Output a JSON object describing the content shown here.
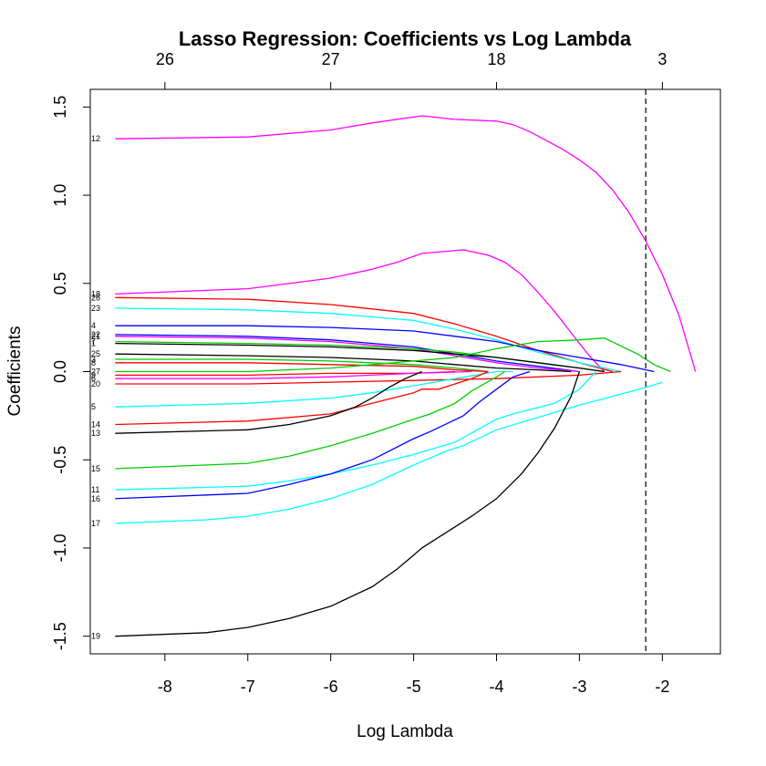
{
  "chart_data": {
    "type": "line",
    "title": "Lasso Regression: Coefficients vs Log Lambda",
    "xlabel": "Log Lambda",
    "ylabel": "Coefficients",
    "xlim": [
      -8.9,
      -1.3
    ],
    "ylim": [
      -1.6,
      1.6
    ],
    "x_ticks": [
      -8,
      -7,
      -6,
      -5,
      -4,
      -3,
      -2
    ],
    "y_ticks": [
      -1.5,
      -1.0,
      -0.5,
      0.0,
      0.5,
      1.0,
      1.5
    ],
    "y_tick_labels": [
      "-1.5",
      "-1.0",
      "-0.5",
      "0.0",
      "0.5",
      "1.0",
      "1.5"
    ],
    "top_axis": {
      "positions": [
        -8,
        -6,
        -4,
        -2
      ],
      "labels": [
        "26",
        "27",
        "18",
        "3"
      ]
    },
    "vline": -2.2,
    "grid": false,
    "series": [
      {
        "name": "12",
        "color": "#ff00ff",
        "x": [
          -8.6,
          -7,
          -6,
          -5.5,
          -4.9,
          -4.7,
          -4.5,
          -4,
          -3.8,
          -3.6,
          -3.4,
          -3.2,
          -3,
          -2.8,
          -2.6,
          -2.4,
          -2.2,
          -2,
          -1.8,
          -1.6
        ],
        "y": [
          1.32,
          1.33,
          1.37,
          1.41,
          1.45,
          1.44,
          1.43,
          1.42,
          1.4,
          1.36,
          1.31,
          1.26,
          1.2,
          1.13,
          1.03,
          0.9,
          0.74,
          0.55,
          0.32,
          0.0
        ]
      },
      {
        "name": "18",
        "color": "#ff00ff",
        "x": [
          -8.6,
          -7,
          -6,
          -5.5,
          -5.2,
          -4.9,
          -4.4,
          -4.1,
          -3.9,
          -3.7,
          -3.5,
          -3.3,
          -3.1,
          -2.9,
          -2.7
        ],
        "y": [
          0.44,
          0.47,
          0.53,
          0.58,
          0.62,
          0.67,
          0.69,
          0.66,
          0.62,
          0.55,
          0.45,
          0.34,
          0.22,
          0.1,
          0.0
        ]
      },
      {
        "name": "26",
        "color": "#ff0000",
        "x": [
          -8.6,
          -7,
          -6,
          -5,
          -4.5,
          -4,
          -3.5,
          -3,
          -2.6
        ],
        "y": [
          0.42,
          0.41,
          0.38,
          0.33,
          0.27,
          0.2,
          0.12,
          0.05,
          0.0
        ]
      },
      {
        "name": "23",
        "color": "#00ffff",
        "x": [
          -8.6,
          -7,
          -6,
          -5,
          -4.5,
          -4,
          -3.5,
          -3,
          -2.5
        ],
        "y": [
          0.36,
          0.35,
          0.33,
          0.29,
          0.24,
          0.18,
          0.11,
          0.05,
          0.0
        ]
      },
      {
        "name": "4",
        "color": "#0000ff",
        "x": [
          -8.6,
          -7,
          -6,
          -5,
          -4.5,
          -4,
          -3.5,
          -3,
          -2.5,
          -2.1
        ],
        "y": [
          0.26,
          0.26,
          0.25,
          0.23,
          0.2,
          0.17,
          0.12,
          0.08,
          0.04,
          0.0
        ]
      },
      {
        "name": "22",
        "color": "#0000ff",
        "x": [
          -8.6,
          -7,
          -6,
          -5,
          -4.5,
          -4,
          -3.5,
          -3
        ],
        "y": [
          0.21,
          0.2,
          0.18,
          0.14,
          0.1,
          0.06,
          0.03,
          0.0
        ]
      },
      {
        "name": "21",
        "color": "#ff00ff",
        "x": [
          -8.6,
          -7,
          -6,
          -5,
          -4.5,
          -4,
          -3.5,
          -3
        ],
        "y": [
          0.2,
          0.19,
          0.17,
          0.13,
          0.09,
          0.05,
          0.02,
          0.0
        ]
      },
      {
        "name": "7",
        "color": "#00cd00",
        "x": [
          -8.6,
          -7,
          -6,
          -5,
          -4.5,
          -4,
          -3.5,
          -3,
          -2.7
        ],
        "y": [
          0.17,
          0.16,
          0.15,
          0.13,
          0.11,
          0.08,
          0.05,
          0.02,
          0.0
        ]
      },
      {
        "name": "1",
        "color": "#000000",
        "x": [
          -8.6,
          -7,
          -6,
          -5,
          -4.5,
          -4,
          -3.5,
          -3,
          -2.7
        ],
        "y": [
          0.16,
          0.15,
          0.14,
          0.12,
          0.1,
          0.08,
          0.05,
          0.02,
          0.0
        ]
      },
      {
        "name": "25",
        "color": "#000000",
        "x": [
          -8.6,
          -7,
          -6,
          -5,
          -4.5,
          -4,
          -3.5,
          -3.1
        ],
        "y": [
          0.1,
          0.09,
          0.08,
          0.06,
          0.04,
          0.02,
          0.01,
          0.0
        ]
      },
      {
        "name": "3",
        "color": "#00cd00",
        "x": [
          -8.6,
          -7,
          -6,
          -5,
          -4.5,
          -4.1
        ],
        "y": [
          0.07,
          0.07,
          0.06,
          0.04,
          0.02,
          0.0
        ]
      },
      {
        "name": "8",
        "color": "#ff0000",
        "x": [
          -8.6,
          -7,
          -6,
          -5,
          -4.5,
          -4.1
        ],
        "y": [
          0.05,
          0.05,
          0.04,
          0.03,
          0.01,
          0.0
        ]
      },
      {
        "name": "27",
        "color": "#00cd00",
        "x": [
          -8.6,
          -7,
          -6,
          -5.5,
          -5,
          -4.5,
          -4,
          -3.5,
          -3,
          -2.7,
          -2.3,
          -2.1,
          -1.9
        ],
        "y": [
          0.0,
          0.0,
          0.02,
          0.04,
          0.06,
          0.08,
          0.13,
          0.17,
          0.18,
          0.19,
          0.1,
          0.04,
          0.0
        ]
      },
      {
        "name": "9",
        "color": "#ff0000",
        "x": [
          -8.6,
          -7,
          -6,
          -5,
          -4.5
        ],
        "y": [
          -0.02,
          -0.02,
          -0.01,
          -0.01,
          0.0
        ]
      },
      {
        "name": "6",
        "color": "#ff00ff",
        "x": [
          -8.6,
          -7,
          -6,
          -5,
          -4.3
        ],
        "y": [
          -0.04,
          -0.04,
          -0.03,
          -0.01,
          0.0
        ]
      },
      {
        "name": "20",
        "color": "#ff0000",
        "x": [
          -8.6,
          -7,
          -6,
          -5,
          -4,
          -3,
          -2.5
        ],
        "y": [
          -0.07,
          -0.07,
          -0.06,
          -0.05,
          -0.04,
          -0.02,
          0.0
        ]
      },
      {
        "name": "5",
        "color": "#00ffff",
        "x": [
          -8.6,
          -7,
          -6,
          -5.5,
          -5,
          -4.5,
          -4,
          -3.8
        ],
        "y": [
          -0.2,
          -0.18,
          -0.15,
          -0.12,
          -0.08,
          -0.04,
          0.0,
          0.0
        ]
      },
      {
        "name": "14",
        "color": "#ff0000",
        "x": [
          -8.6,
          -7,
          -6,
          -5.5,
          -5,
          -4.9,
          -4.7,
          -4.5,
          -4.3,
          -4.1
        ],
        "y": [
          -0.3,
          -0.28,
          -0.24,
          -0.18,
          -0.12,
          -0.1,
          -0.1,
          -0.07,
          -0.04,
          0.0
        ]
      },
      {
        "name": "13",
        "color": "#000000",
        "x": [
          -8.6,
          -7,
          -6.5,
          -6,
          -5.7,
          -5.5,
          -5.3,
          -5.1,
          -4.9
        ],
        "y": [
          -0.35,
          -0.33,
          -0.3,
          -0.25,
          -0.2,
          -0.15,
          -0.09,
          -0.04,
          0.0
        ]
      },
      {
        "name": "15",
        "color": "#00cd00",
        "x": [
          -8.6,
          -7,
          -6.5,
          -6,
          -5.5,
          -5,
          -4.8,
          -4.5,
          -4.3,
          -4,
          -3.9
        ],
        "y": [
          -0.55,
          -0.52,
          -0.48,
          -0.42,
          -0.35,
          -0.27,
          -0.24,
          -0.18,
          -0.11,
          -0.03,
          0.0
        ]
      },
      {
        "name": "11",
        "color": "#00ffff",
        "x": [
          -8.6,
          -7,
          -6.5,
          -6,
          -5.5,
          -5,
          -4.5,
          -4,
          -3.8,
          -3.3,
          -3,
          -2.8
        ],
        "y": [
          -0.67,
          -0.65,
          -0.62,
          -0.58,
          -0.53,
          -0.47,
          -0.4,
          -0.27,
          -0.24,
          -0.18,
          -0.1,
          0.0
        ]
      },
      {
        "name": "16",
        "color": "#0000ff",
        "x": [
          -8.6,
          -7,
          -6.5,
          -6,
          -5.5,
          -5,
          -4.8,
          -4.4,
          -4.2,
          -4,
          -3.8,
          -3.6
        ],
        "y": [
          -0.72,
          -0.69,
          -0.64,
          -0.58,
          -0.5,
          -0.38,
          -0.34,
          -0.25,
          -0.17,
          -0.1,
          -0.03,
          0.0
        ]
      },
      {
        "name": "17",
        "color": "#00ffff",
        "x": [
          -8.6,
          -7.5,
          -7,
          -6.5,
          -6,
          -5.5,
          -5,
          -4.6,
          -4.4,
          -4,
          -3.5,
          -3,
          -2.6,
          -2.2,
          -2
        ],
        "y": [
          -0.86,
          -0.84,
          -0.82,
          -0.78,
          -0.72,
          -0.64,
          -0.53,
          -0.45,
          -0.42,
          -0.33,
          -0.26,
          -0.19,
          -0.14,
          -0.09,
          -0.06
        ]
      },
      {
        "name": "19",
        "color": "#000000",
        "x": [
          -8.6,
          -7.5,
          -7,
          -6.5,
          -6,
          -5.5,
          -5.2,
          -5,
          -4.9,
          -4.5,
          -4.3,
          -4,
          -3.7,
          -3.5,
          -3.3,
          -3.1,
          -3
        ],
        "y": [
          -1.5,
          -1.48,
          -1.45,
          -1.4,
          -1.33,
          -1.22,
          -1.12,
          -1.04,
          -1.0,
          -0.88,
          -0.82,
          -0.72,
          -0.58,
          -0.46,
          -0.32,
          -0.14,
          0.0
        ]
      }
    ]
  }
}
